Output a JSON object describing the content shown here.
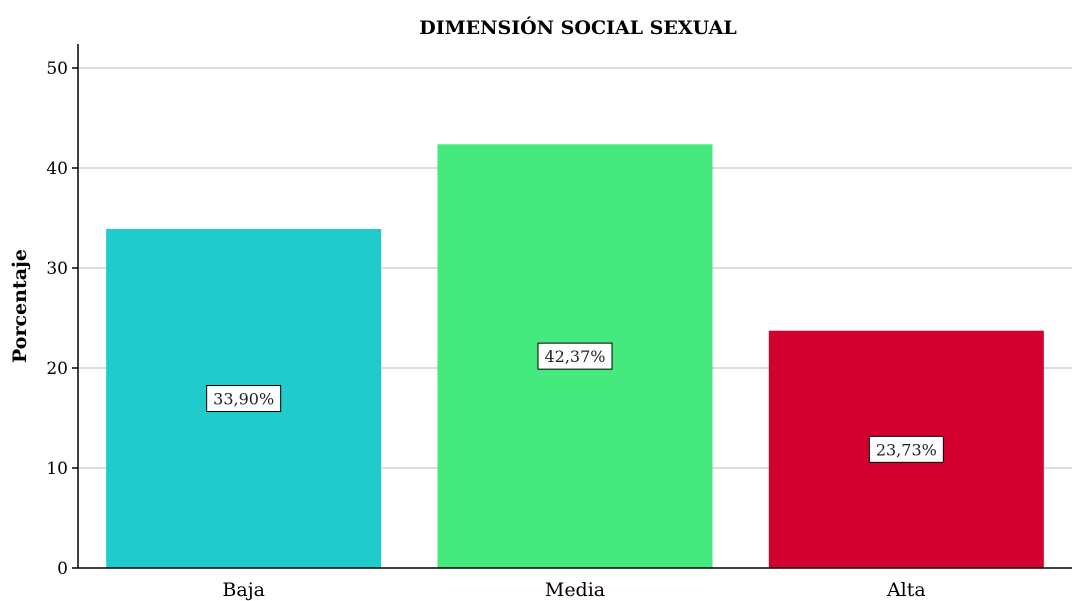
{
  "chart_data": {
    "type": "bar",
    "title": "DIMENSIÓN SOCIAL SEXUAL",
    "xlabel": "",
    "ylabel": "Porcentaje",
    "categories": [
      "Baja",
      "Media",
      "Alta"
    ],
    "values": [
      33.9,
      42.37,
      23.73
    ],
    "data_labels": [
      "33,90%",
      "42,37%",
      "23,73%"
    ],
    "colors": [
      "#1fcbcb",
      "#46e97e",
      "#d3002f"
    ],
    "ylim": [
      0,
      52
    ],
    "yticks": [
      0,
      10,
      20,
      30,
      40,
      50
    ],
    "grid": true,
    "legend": "none"
  }
}
